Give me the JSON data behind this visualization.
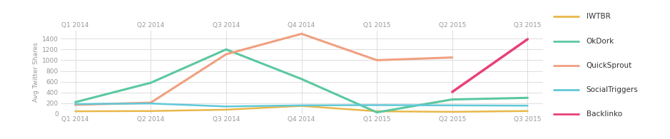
{
  "x_labels": [
    "Q1 2014",
    "Q2 2014",
    "Q3 2014",
    "Q4 2014",
    "Q1 2015",
    "Q2 2015",
    "Q3 2015"
  ],
  "series": {
    "IWTBR": {
      "color": "#e8b84b",
      "values": [
        50,
        55,
        80,
        150,
        50,
        40,
        55
      ],
      "linewidth": 1.8
    },
    "OkDork": {
      "color": "#5bc8a0",
      "values": [
        220,
        580,
        1200,
        650,
        30,
        270,
        300
      ],
      "linewidth": 2.2
    },
    "QuickSprout": {
      "color": "#f0a080",
      "values": [
        170,
        210,
        1110,
        1490,
        1000,
        1050,
        null
      ],
      "linewidth": 2.2
    },
    "SocialTriggers": {
      "color": "#60c8d8",
      "values": [
        185,
        195,
        140,
        160,
        165,
        160,
        155
      ],
      "linewidth": 1.8
    },
    "Backlinko": {
      "color": "#e8407a",
      "values": [
        null,
        null,
        null,
        null,
        null,
        410,
        1390
      ],
      "linewidth": 2.5
    }
  },
  "ylabel": "Avg Twitter Shares",
  "ylim": [
    0,
    1550
  ],
  "yticks": [
    0,
    200,
    400,
    600,
    800,
    1000,
    1200,
    1400
  ],
  "background_color": "#ffffff",
  "grid_color": "#d0d0d0",
  "tick_label_color": "#999999",
  "axis_label_color": "#999999",
  "legend_order": [
    "IWTBR",
    "OkDork",
    "QuickSprout",
    "SocialTriggers",
    "Backlinko"
  ],
  "legend_label_color": "#333333"
}
